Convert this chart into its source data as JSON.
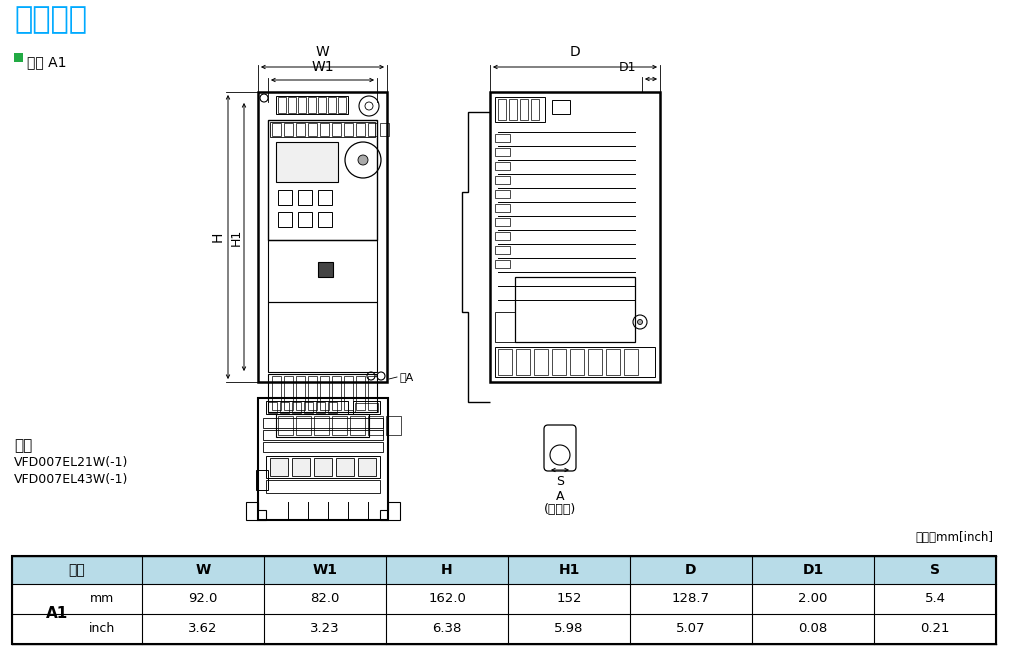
{
  "title": "尺寸外观",
  "title_color": "#00aaff",
  "frame_label": "框号 A1",
  "model_title": "型号",
  "model_lines": [
    "VFD007EL21W(-1)",
    "VFD007EL43W(-1)"
  ],
  "unit_note": "单位：mm[inch]",
  "see_a_label": "见A",
  "a_label": "A",
  "a_sublabel": "(安装孔)",
  "s_label": "S",
  "table_headers": [
    "框号",
    "W",
    "W1",
    "H",
    "H1",
    "D",
    "D1",
    "S"
  ],
  "table_header_bg": "#b8dce8",
  "table_row_a1_label": "A1",
  "table_col_unit1": "mm",
  "table_col_unit2": "inch",
  "table_mm_values": [
    "92.0",
    "82.0",
    "162.0",
    "152",
    "128.7",
    "2.00",
    "5.4"
  ],
  "table_inch_values": [
    "3.62",
    "3.23",
    "6.38",
    "5.98",
    "5.07",
    "0.08",
    "0.21"
  ],
  "background_color": "#ffffff"
}
